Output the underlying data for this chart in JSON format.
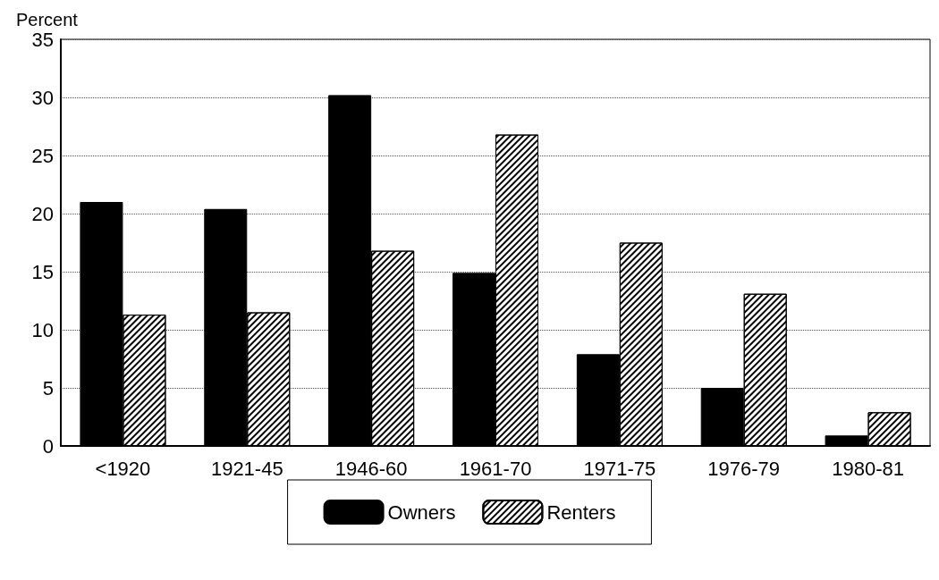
{
  "chart_data": {
    "type": "bar",
    "ylabel": "Percent",
    "categories": [
      "<1920",
      "1921-45",
      "1946-60",
      "1961-70",
      "1971-75",
      "1976-79",
      "1980-81"
    ],
    "series": [
      {
        "name": "Owners",
        "color": "#000000",
        "values": [
          21,
          20.4,
          30.2,
          14.9,
          7.9,
          5,
          0.9
        ]
      },
      {
        "name": "Renters",
        "color": "#ffffff",
        "values": [
          11.3,
          11.5,
          16.8,
          26.8,
          17.5,
          13.1,
          2.9
        ]
      }
    ],
    "ylim": [
      0,
      35
    ],
    "yticks": [
      0,
      5,
      10,
      15,
      20,
      25,
      30,
      35
    ],
    "grid": "y",
    "legend": "bottom"
  }
}
